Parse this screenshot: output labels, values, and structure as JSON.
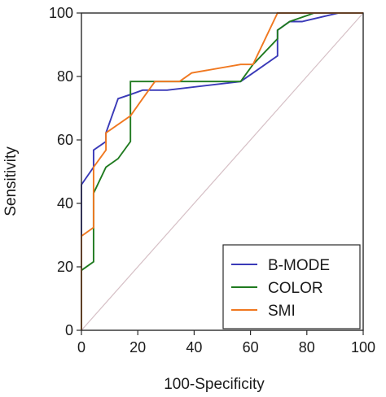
{
  "chart_data": {
    "type": "line",
    "title": "",
    "xlabel": "100-Specificity",
    "ylabel": "Sensitivity",
    "xlim": [
      0,
      100
    ],
    "ylim": [
      0,
      100
    ],
    "xticks": [
      0,
      20,
      40,
      60,
      80,
      100
    ],
    "yticks": [
      0,
      20,
      40,
      60,
      80,
      100
    ],
    "grid": false,
    "legend_position": "bottom-right",
    "reference_line": {
      "x": [
        0,
        100
      ],
      "y": [
        0,
        100
      ],
      "color": "#d6c0c6"
    },
    "series": [
      {
        "name": "B-MODE",
        "color": "#3a3ab8",
        "x": [
          0,
          0,
          0,
          4.3,
          4.3,
          8.7,
          8.7,
          13.0,
          17.4,
          21.7,
          30.4,
          56.5,
          60.9,
          69.6,
          69.6,
          73.9,
          78.3,
          91.3,
          100
        ],
        "y": [
          0,
          29.7,
          45.9,
          51.4,
          56.8,
          59.5,
          62.2,
          73.0,
          74.3,
          75.7,
          75.7,
          78.4,
          81.1,
          86.5,
          94.6,
          97.3,
          97.3,
          100,
          100
        ]
      },
      {
        "name": "COLOR",
        "color": "#1f7a1f",
        "x": [
          0,
          0,
          4.3,
          4.3,
          8.7,
          13.0,
          17.4,
          17.4,
          56.5,
          60.9,
          69.6,
          69.6,
          73.9,
          82.6,
          100
        ],
        "y": [
          0,
          18.9,
          21.6,
          43.2,
          51.4,
          54.1,
          59.5,
          78.4,
          78.4,
          83.8,
          91.9,
          94.6,
          97.3,
          100,
          100
        ]
      },
      {
        "name": "SMI",
        "color": "#f07820",
        "x": [
          0,
          0,
          4.3,
          4.3,
          8.7,
          8.7,
          17.4,
          21.7,
          26.1,
          34.8,
          39.1,
          56.5,
          60.9,
          69.6,
          69.6,
          100
        ],
        "y": [
          0,
          29.7,
          32.4,
          51.4,
          56.8,
          62.2,
          67.6,
          73.0,
          78.4,
          78.4,
          81.1,
          83.8,
          83.8,
          100,
          100,
          100
        ]
      }
    ]
  }
}
